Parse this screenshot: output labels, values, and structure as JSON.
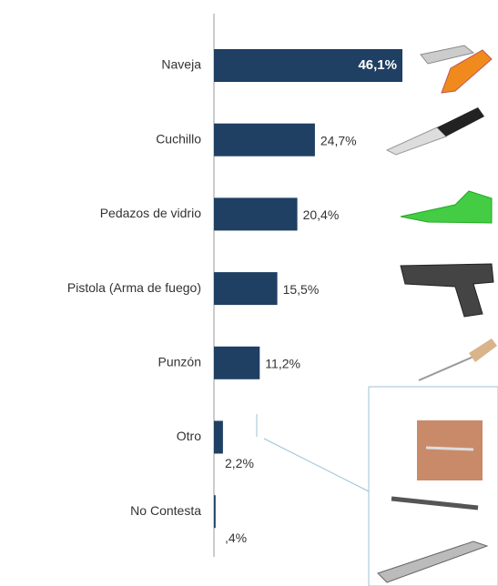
{
  "chart_data": {
    "type": "bar",
    "orientation": "horizontal",
    "categories": [
      "Naveja",
      "Cuchillo",
      "Pedazos de vidrio",
      "Pistola (Arma de fuego)",
      "Punzón",
      "Otro",
      "No Contesta"
    ],
    "values": [
      46.1,
      24.7,
      20.4,
      15.5,
      11.2,
      2.2,
      0.4
    ],
    "value_labels": [
      "46,1%",
      "24,7%",
      "20,4%",
      "15,5%",
      "11,2%",
      "2,2%",
      ",4%"
    ],
    "color": "#1f3f63"
  }
}
